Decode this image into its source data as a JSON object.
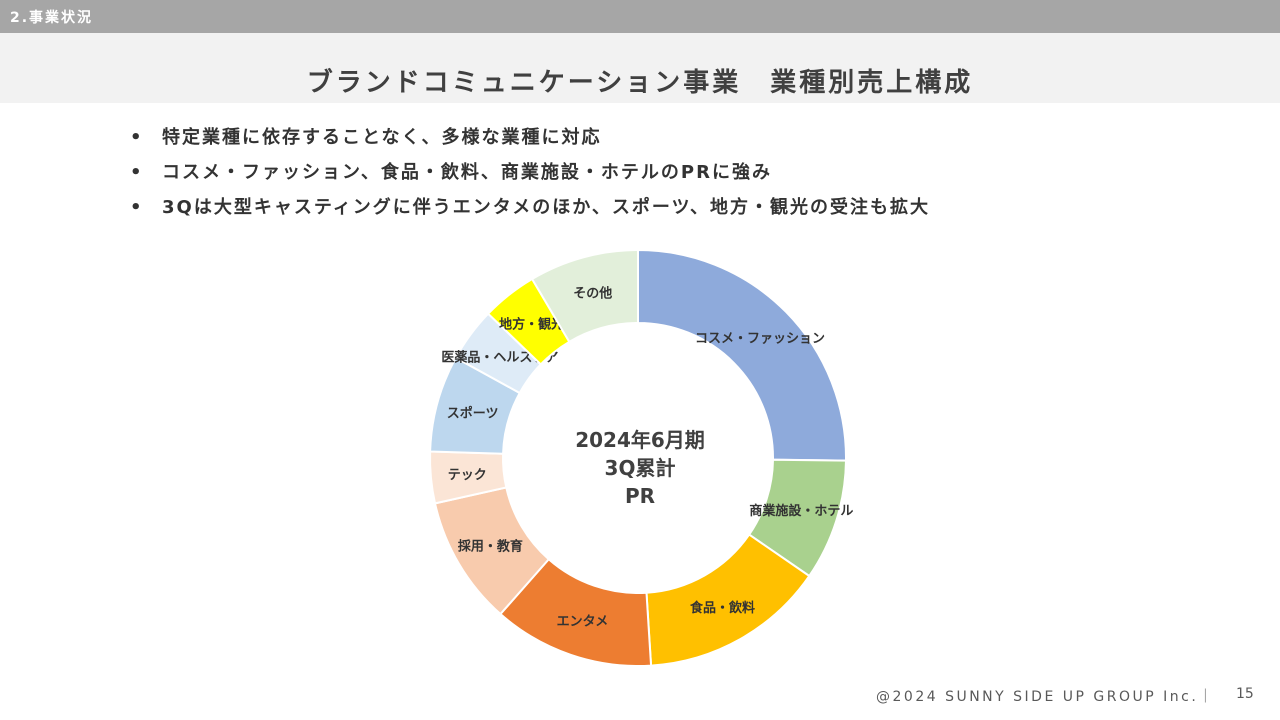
{
  "header": {
    "section": "2.事業状況"
  },
  "title": "ブランドコミュニケーション事業　業種別売上構成",
  "bullets": [
    "特定業種に依存することなく、多様な業種に対応",
    "コスメ・ファッション、食品・飲料、商業施設・ホテルのPRに強み",
    "3Qは大型キャスティングに伴うエンタメのほか、スポーツ、地方・観光の受注も拡大"
  ],
  "bullet_symbol": "•",
  "center": {
    "line1": "2024年6月期",
    "line2": "3Q累計",
    "line3": "PR"
  },
  "chart_data": {
    "type": "pie",
    "donut": true,
    "start": "12 o'clock, clockwise",
    "slices": [
      {
        "label": "コスメ・ファッション",
        "value": 25.2,
        "color": "#8eaadb"
      },
      {
        "label": "商業施設・ホテル",
        "value": 9.4,
        "color": "#a9d18e"
      },
      {
        "label": "食品・飲料",
        "value": 14.4,
        "color": "#ffc000"
      },
      {
        "label": "エンタメ",
        "value": 12.5,
        "color": "#ed7d31"
      },
      {
        "label": "採用・教育",
        "value": 10.0,
        "color": "#f8cbad"
      },
      {
        "label": "テック",
        "value": 4.0,
        "color": "#fbe5d6"
      },
      {
        "label": "スポーツ",
        "value": 7.5,
        "color": "#bdd7ee"
      },
      {
        "label": "医薬品・ヘルスケア",
        "value": 4.2,
        "color": "#deebf7"
      },
      {
        "label": "地方・観光",
        "value": 4.3,
        "color": "#ffff00"
      },
      {
        "label": "その他",
        "value": 8.5,
        "color": "#e2efda"
      }
    ]
  },
  "footer": {
    "copyright": "@2024 SUNNY SIDE UP GROUP Inc.｜",
    "page": "15"
  }
}
